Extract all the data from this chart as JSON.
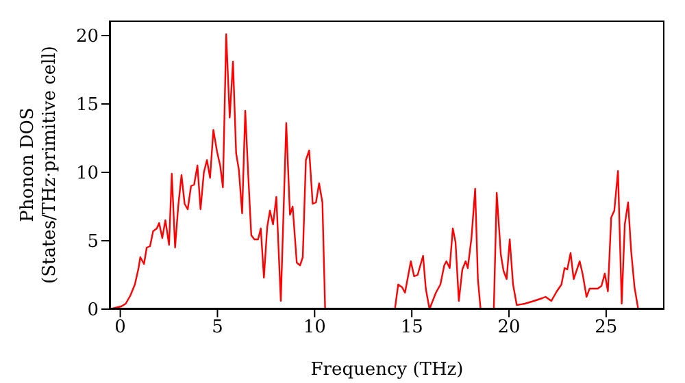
{
  "chart_data": {
    "type": "line",
    "xlabel": "Frequency (THz)",
    "ylabel": "Phonon DOS\n(States/THz·primitive cell)",
    "xlim": [
      -0.55,
      28
    ],
    "ylim": [
      0,
      21.1
    ],
    "xticks": [
      0,
      5,
      10,
      15,
      20,
      25
    ],
    "yticks": [
      0,
      5,
      10,
      15,
      20
    ],
    "grid": false,
    "marker": "none",
    "line_style": "solid",
    "series": [
      {
        "color": "#ff0000",
        "x": [
          -0.54,
          0.05,
          0.28,
          0.52,
          0.75,
          0.94,
          1.03,
          1.22,
          1.36,
          1.53,
          1.69,
          1.88,
          2.0,
          2.16,
          2.32,
          2.51,
          2.65,
          2.82,
          2.98,
          3.15,
          3.31,
          3.47,
          3.64,
          3.8,
          3.97,
          4.13,
          4.3,
          4.46,
          4.62,
          4.79,
          4.98,
          5.14,
          5.28,
          5.45,
          5.63,
          5.8,
          5.96,
          6.1,
          6.27,
          6.43,
          6.57,
          6.74,
          6.9,
          7.09,
          7.23,
          7.39,
          7.56,
          7.7,
          7.86,
          8.03,
          8.26,
          8.54,
          8.73,
          8.87,
          9.08,
          9.25,
          9.39,
          9.55,
          9.72,
          9.9,
          10.07,
          10.23,
          10.4,
          10.54,
          14.13,
          14.3,
          14.5,
          14.65,
          14.95,
          15.12,
          15.3,
          15.58,
          15.72,
          15.91,
          16.24,
          16.47,
          16.67,
          16.78,
          16.95,
          17.11,
          17.25,
          17.42,
          17.6,
          17.77,
          17.88,
          18.07,
          18.26,
          18.4,
          18.54,
          19.22,
          19.37,
          19.58,
          19.72,
          19.88,
          20.04,
          20.21,
          20.4,
          20.82,
          21.29,
          21.71,
          21.88,
          22.18,
          22.46,
          22.7,
          22.86,
          23.0,
          23.17,
          23.33,
          23.64,
          23.8,
          23.99,
          24.15,
          24.57,
          24.76,
          24.93,
          25.09,
          25.26,
          25.42,
          25.61,
          25.8,
          25.96,
          26.13,
          26.29,
          26.46,
          26.65,
          27.99
        ],
        "values": [
          0,
          0.2,
          0.4,
          1.0,
          1.8,
          3.0,
          3.8,
          3.3,
          4.5,
          4.6,
          5.7,
          5.9,
          6.3,
          5.2,
          6.5,
          4.7,
          9.9,
          4.5,
          7.5,
          9.8,
          7.7,
          7.3,
          9.0,
          9.1,
          10.5,
          7.3,
          10.0,
          10.9,
          9.6,
          13.1,
          11.5,
          10.5,
          8.9,
          20.1,
          14.0,
          18.1,
          11.4,
          10.2,
          7.0,
          14.5,
          10.2,
          5.4,
          5.1,
          5.1,
          5.9,
          2.3,
          6.0,
          7.2,
          6.2,
          8.2,
          0.6,
          13.6,
          6.9,
          7.5,
          3.4,
          3.2,
          3.8,
          10.9,
          11.6,
          7.7,
          7.8,
          9.2,
          7.8,
          0,
          0,
          1.8,
          1.6,
          1.2,
          3.5,
          2.4,
          2.5,
          3.9,
          1.5,
          0,
          1.2,
          1.8,
          3.2,
          3.5,
          3.0,
          5.9,
          4.9,
          0.6,
          2.9,
          3.5,
          3.0,
          5.2,
          8.8,
          2.2,
          0,
          0,
          8.5,
          4.0,
          2.8,
          2.2,
          5.1,
          1.8,
          0.3,
          0.4,
          0.6,
          0.8,
          0.9,
          0.6,
          1.3,
          1.8,
          3.0,
          2.9,
          4.1,
          2.2,
          3.5,
          2.5,
          0.9,
          1.5,
          1.5,
          1.7,
          2.6,
          1.3,
          6.7,
          7.2,
          10.1,
          0.4,
          6.2,
          7.8,
          4.2,
          1.6,
          0,
          0
        ]
      }
    ]
  }
}
